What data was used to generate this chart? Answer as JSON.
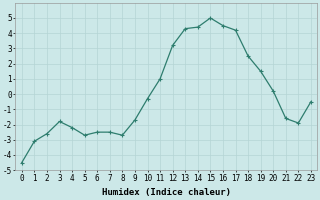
{
  "x": [
    0,
    1,
    2,
    3,
    4,
    5,
    6,
    7,
    8,
    9,
    10,
    11,
    12,
    13,
    14,
    15,
    16,
    17,
    18,
    19,
    20,
    21,
    22,
    23
  ],
  "y": [
    -4.5,
    -3.1,
    -2.6,
    -1.8,
    -2.2,
    -2.7,
    -2.5,
    -2.5,
    -2.7,
    -1.7,
    -0.3,
    1.0,
    3.2,
    4.3,
    4.4,
    5.0,
    4.5,
    4.2,
    2.5,
    1.5,
    0.2,
    -1.6,
    -1.9,
    -0.5
  ],
  "line_color": "#2e7d6e",
  "marker": "+",
  "marker_size": 3.5,
  "marker_lw": 0.8,
  "line_width": 0.9,
  "bg_color": "#cce8e8",
  "grid_color": "#b5d5d5",
  "xlabel": "Humidex (Indice chaleur)",
  "ylim": [
    -5,
    6
  ],
  "xlim": [
    -0.5,
    23.5
  ],
  "yticks": [
    -5,
    -4,
    -3,
    -2,
    -1,
    0,
    1,
    2,
    3,
    4,
    5
  ],
  "xticks": [
    0,
    1,
    2,
    3,
    4,
    5,
    6,
    7,
    8,
    9,
    10,
    11,
    12,
    13,
    14,
    15,
    16,
    17,
    18,
    19,
    20,
    21,
    22,
    23
  ],
  "xtick_labels": [
    "0",
    "1",
    "2",
    "3",
    "4",
    "5",
    "6",
    "7",
    "8",
    "9",
    "10",
    "11",
    "12",
    "13",
    "14",
    "15",
    "16",
    "17",
    "18",
    "19",
    "20",
    "21",
    "22",
    "23"
  ],
  "xlabel_fontsize": 6.5,
  "tick_fontsize": 5.5,
  "xlabel_fontfamily": "monospace",
  "xlabel_bold": true
}
